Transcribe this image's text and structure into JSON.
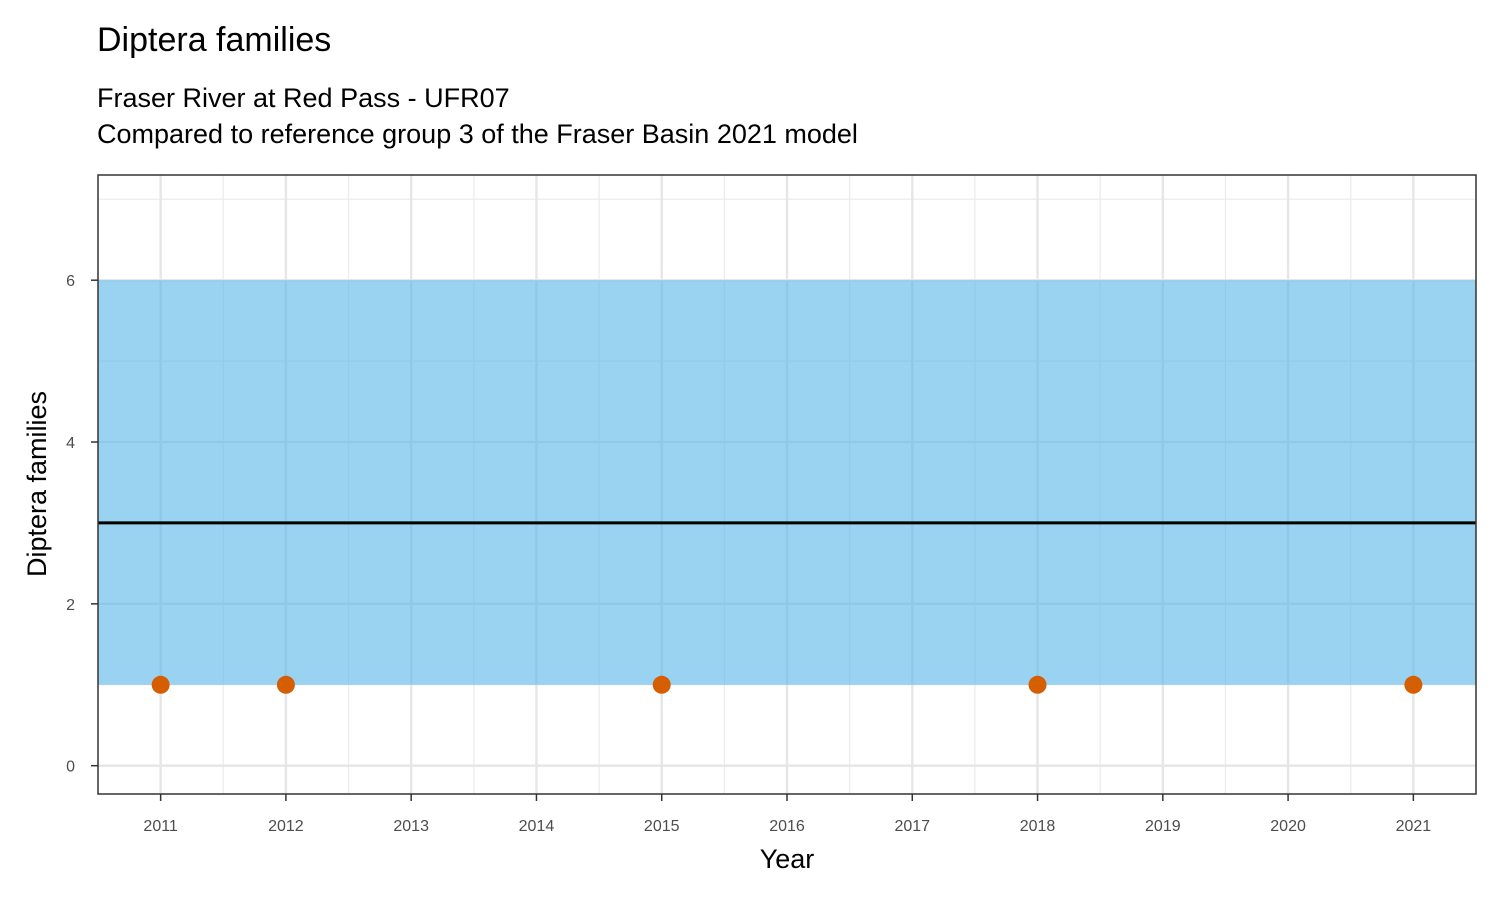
{
  "chart_data": {
    "type": "scatter",
    "title": "Diptera families",
    "subtitle_lines": [
      "Fraser River at Red Pass - UFR07",
      "Compared to reference group 3 of the Fraser Basin 2021 model"
    ],
    "xlabel": "Year",
    "ylabel": "Diptera families",
    "x_ticks": [
      2011,
      2012,
      2013,
      2014,
      2015,
      2016,
      2017,
      2018,
      2019,
      2020,
      2021
    ],
    "y_ticks": [
      0,
      2,
      4,
      6
    ],
    "xlim": [
      2010.5,
      2021.5
    ],
    "ylim": [
      -0.35,
      7.3
    ],
    "grid": true,
    "reference_band": {
      "lower": 1,
      "upper": 6,
      "color": "#56B4E9"
    },
    "reference_line": {
      "value": 3,
      "color": "#000000"
    },
    "points": {
      "color": "#D55E00",
      "x": [
        2011,
        2012,
        2015,
        2018,
        2021
      ],
      "y": [
        1,
        1,
        1,
        1,
        1
      ]
    },
    "legend": "none"
  }
}
